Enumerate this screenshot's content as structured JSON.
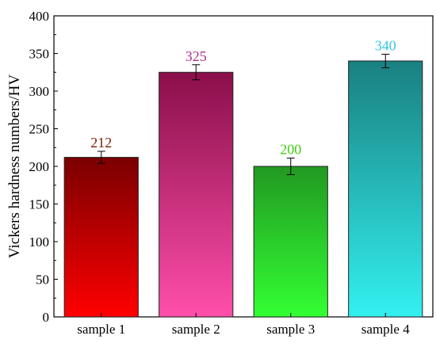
{
  "chart_data": {
    "type": "bar",
    "title": "",
    "xlabel": "",
    "ylabel": "Vickers hardness numbers/HV",
    "categories": [
      "sample 1",
      "sample 2",
      "sample 3",
      "sample 4"
    ],
    "values": [
      212,
      325,
      200,
      340
    ],
    "errors": [
      8,
      10,
      11,
      9
    ],
    "data_labels": [
      "212",
      "325",
      "200",
      "340"
    ],
    "ylim": [
      0,
      400
    ],
    "yticks": [
      0,
      50,
      100,
      150,
      200,
      250,
      300,
      350,
      400
    ],
    "grid": false,
    "legend": "none",
    "bar_colors": [
      {
        "top": "#7a0000",
        "bottom": "#ff0000",
        "label": "#7a1f00"
      },
      {
        "top": "#8a0f4a",
        "bottom": "#ff4faa",
        "label": "#b0308a"
      },
      {
        "top": "#229922",
        "bottom": "#33ff33",
        "label": "#44cc11"
      },
      {
        "top": "#1a8080",
        "bottom": "#33f0f0",
        "label": "#33c8e6"
      }
    ]
  }
}
